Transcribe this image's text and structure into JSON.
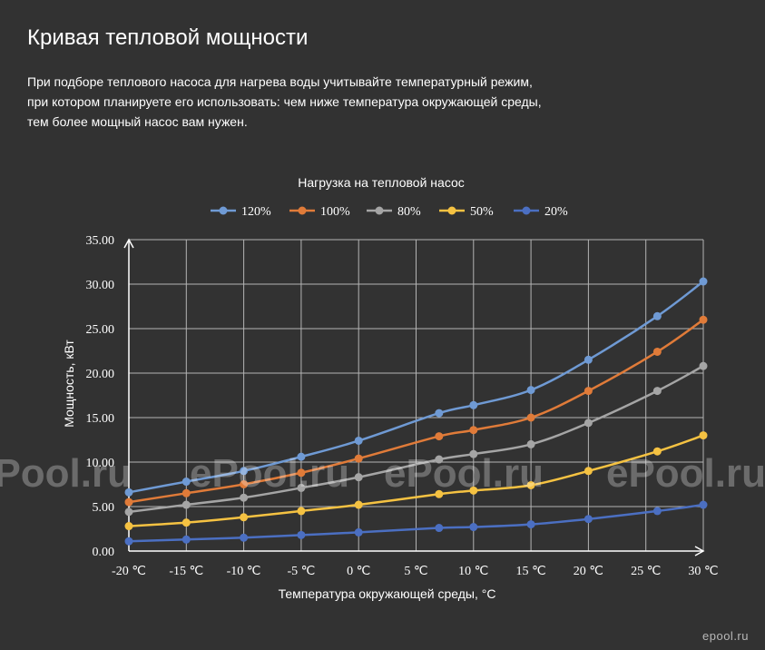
{
  "header": {
    "title": "Кривая тепловой мощности",
    "description_lines": [
      "При подборе теплового насоса для нагрева воды учитывайте температурный режим,",
      "при котором планируете его использовать: чем ниже температура окружающей среды,",
      "тем более мощный насос вам нужен."
    ]
  },
  "watermark": {
    "text": "ePool.ru"
  },
  "site_logo": "epool.ru",
  "chart_data": {
    "type": "line",
    "title": "Нагрузка на тепловой насос",
    "xlabel": "Температура окружающей среды, °C",
    "ylabel": "Мощность, кВт",
    "x_ticks": [
      -20,
      -15,
      -10,
      -5,
      0,
      5,
      10,
      15,
      20,
      25,
      30
    ],
    "x_tick_labels": [
      "-20 ℃",
      "-15 ℃",
      "-10 ℃",
      "-5 ℃",
      "0 ℃",
      "5 ℃",
      "10 ℃",
      "15 ℃",
      "20 ℃",
      "25 ℃",
      "30 ℃"
    ],
    "y_ticks": [
      0,
      5,
      10,
      15,
      20,
      25,
      30,
      35
    ],
    "y_tick_labels": [
      "0.00",
      "5.00",
      "10.00",
      "15.00",
      "20.00",
      "25.00",
      "30.00",
      "35.00"
    ],
    "xlim": [
      -20,
      30
    ],
    "ylim": [
      0,
      35
    ],
    "grid": true,
    "legend_position": "top",
    "series": [
      {
        "name": "120%",
        "color": "#6f9ad4",
        "x": [
          -20,
          -15,
          -10,
          -5,
          0,
          7,
          10,
          15,
          20,
          26,
          30
        ],
        "y": [
          6.6,
          7.8,
          9.0,
          10.6,
          12.4,
          15.5,
          16.4,
          18.1,
          21.5,
          26.4,
          30.3
        ]
      },
      {
        "name": "100%",
        "color": "#e07b39",
        "x": [
          -20,
          -15,
          -10,
          -5,
          0,
          7,
          10,
          15,
          20,
          26,
          30
        ],
        "y": [
          5.5,
          6.5,
          7.5,
          8.8,
          10.4,
          12.9,
          13.6,
          15.0,
          18.0,
          22.4,
          26.0
        ]
      },
      {
        "name": "80%",
        "color": "#a5a5a5",
        "x": [
          -20,
          -15,
          -10,
          -5,
          0,
          7,
          10,
          15,
          20,
          26,
          30
        ],
        "y": [
          4.4,
          5.2,
          6.0,
          7.1,
          8.3,
          10.3,
          10.9,
          12.0,
          14.4,
          18.0,
          20.8
        ]
      },
      {
        "name": "50%",
        "color": "#f5c242",
        "x": [
          -20,
          -15,
          -10,
          -5,
          0,
          7,
          10,
          15,
          20,
          26,
          30
        ],
        "y": [
          2.8,
          3.2,
          3.8,
          4.5,
          5.2,
          6.4,
          6.8,
          7.4,
          9.0,
          11.2,
          13.0
        ]
      },
      {
        "name": "20%",
        "color": "#4b6fc2",
        "x": [
          -20,
          -15,
          -10,
          -5,
          0,
          7,
          10,
          15,
          20,
          26,
          30
        ],
        "y": [
          1.1,
          1.3,
          1.5,
          1.8,
          2.1,
          2.6,
          2.7,
          3.0,
          3.6,
          4.5,
          5.2
        ]
      }
    ]
  }
}
